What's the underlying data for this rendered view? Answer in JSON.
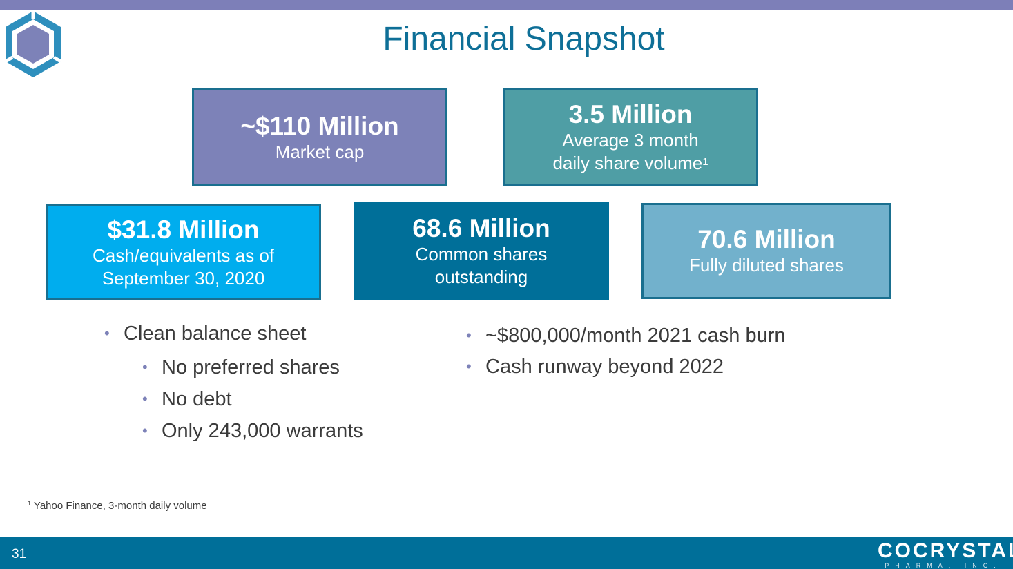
{
  "slide": {
    "title": "Financial Snapshot",
    "page_number": "31"
  },
  "boxes": {
    "market_cap": {
      "value": "~$110 Million",
      "label": "Market cap"
    },
    "volume": {
      "value": "3.5 Million",
      "label_line1": "Average 3 month",
      "label_line2": "daily share volume",
      "footnote_mark": "1"
    },
    "cash": {
      "value": "$31.8 Million",
      "label_line1": "Cash/equivalents as of",
      "label_line2": "September 30, 2020"
    },
    "common_shares": {
      "value": "68.6 Million",
      "label_line1": "Common shares",
      "label_line2": "outstanding"
    },
    "diluted_shares": {
      "value": "70.6 Million",
      "label": "Fully diluted shares"
    }
  },
  "bullets_left": {
    "main": "Clean balance sheet",
    "sub": [
      "No preferred shares",
      "No debt",
      "Only 243,000 warrants"
    ]
  },
  "bullets_right": [
    "~$800,000/month 2021 cash burn",
    "Cash runway beyond 2022"
  ],
  "footnote": {
    "mark": "1",
    "text": "Yahoo Finance, 3-month daily volume"
  },
  "brand": {
    "name": "COCRYSTAL",
    "sub": "PHARMA, INC."
  },
  "colors": {
    "top_bar": "#7d7fb8",
    "bottom_bar": "#006f99",
    "title": "#0e6f97",
    "market_box": "#7d82b8",
    "volume_box": "#4f9ea5",
    "cash_box": "#00adee",
    "common_box": "#006f99",
    "diluted_box": "#72b1cc"
  },
  "icons": {
    "logo": "hexagon-logo-icon"
  }
}
